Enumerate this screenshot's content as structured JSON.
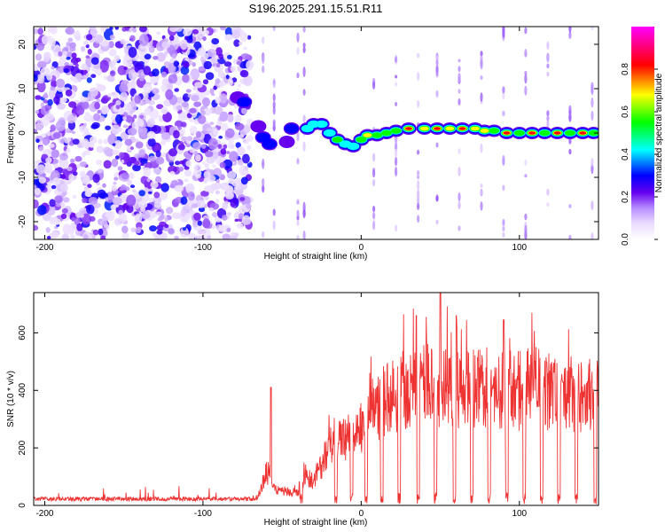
{
  "title": "S196.2025.291.15.51.R11",
  "colors": {
    "snr_line": "#ee3333",
    "frame": "#000000",
    "bg": "#ffffff",
    "colorbar_stops": [
      "#f0e6ff",
      "#cc99ff",
      "#8822ee",
      "#0000ff",
      "#00ffff",
      "#00ff00",
      "#ffff00",
      "#ff0000",
      "#ff00ff"
    ]
  },
  "chart_data": [
    {
      "type": "heatmap",
      "title": "S196.2025.291.15.51.R11",
      "xlabel": "Height of straight line (km)",
      "ylabel": "Frequency (Hz)",
      "xlim": [
        -207,
        150
      ],
      "ylim": [
        -24,
        24
      ],
      "xticks": [
        -200,
        -100,
        0,
        100
      ],
      "xtick_labels": [
        "-200",
        "-100",
        "0",
        "100"
      ],
      "yticks": [
        -20,
        -10,
        0,
        10,
        20
      ],
      "ytick_labels": [
        "-20",
        "-10",
        "0",
        "10",
        "20"
      ],
      "colorbar": {
        "label": "Normalized spectral amplitude",
        "range": [
          0,
          1
        ],
        "ticks": [
          0.0,
          0.2,
          0.4,
          0.6,
          0.8
        ],
        "tick_labels": [
          "0.0",
          "0.2",
          "0.4",
          "0.6",
          "0.8"
        ]
      },
      "noise_region": {
        "x_from": -207,
        "x_to": -70,
        "level": 0.15
      },
      "ridge_points": [
        {
          "x": -78,
          "f": 8,
          "amp": 0.25
        },
        {
          "x": -74,
          "f": 7,
          "amp": 0.3
        },
        {
          "x": -65,
          "f": 1.5,
          "amp": 0.25
        },
        {
          "x": -62,
          "f": -1,
          "amp": 0.35
        },
        {
          "x": -58,
          "f": -2.5,
          "amp": 0.3
        },
        {
          "x": -47,
          "f": -2,
          "amp": 0.25
        },
        {
          "x": -44,
          "f": 1,
          "amp": 0.3
        },
        {
          "x": -34,
          "f": 1,
          "amp": 0.45
        },
        {
          "x": -30,
          "f": 2,
          "amp": 0.5
        },
        {
          "x": -25,
          "f": 2,
          "amp": 0.45
        },
        {
          "x": -20,
          "f": 0,
          "amp": 0.45
        },
        {
          "x": -15,
          "f": -1.5,
          "amp": 0.55
        },
        {
          "x": -10,
          "f": -2.5,
          "amp": 0.5
        },
        {
          "x": -5,
          "f": -3,
          "amp": 0.45
        },
        {
          "x": 0,
          "f": -1.5,
          "amp": 0.55
        },
        {
          "x": 4,
          "f": -0.5,
          "amp": 0.75
        },
        {
          "x": 10,
          "f": -0.5,
          "amp": 0.6
        },
        {
          "x": 16,
          "f": 0,
          "amp": 0.55
        },
        {
          "x": 22,
          "f": 0.5,
          "amp": 0.65
        },
        {
          "x": 30,
          "f": 1,
          "amp": 0.8
        },
        {
          "x": 40,
          "f": 1,
          "amp": 0.7
        },
        {
          "x": 48,
          "f": 1,
          "amp": 0.85
        },
        {
          "x": 56,
          "f": 1,
          "amp": 0.75
        },
        {
          "x": 64,
          "f": 1,
          "amp": 0.85
        },
        {
          "x": 72,
          "f": 1,
          "amp": 0.7
        },
        {
          "x": 78,
          "f": 0.5,
          "amp": 0.75
        },
        {
          "x": 84,
          "f": 0.5,
          "amp": 0.6
        },
        {
          "x": 92,
          "f": 0,
          "amp": 0.8
        },
        {
          "x": 100,
          "f": 0,
          "amp": 0.65
        },
        {
          "x": 108,
          "f": 0,
          "amp": 0.8
        },
        {
          "x": 116,
          "f": 0,
          "amp": 0.65
        },
        {
          "x": 124,
          "f": 0,
          "amp": 0.8
        },
        {
          "x": 132,
          "f": 0,
          "amp": 0.65
        },
        {
          "x": 140,
          "f": 0,
          "amp": 0.8
        },
        {
          "x": 147,
          "f": 0,
          "amp": 0.65
        }
      ]
    },
    {
      "type": "line",
      "xlabel": "Height of straight line (km)",
      "ylabel": "SNR (10 * v/v)",
      "xlim": [
        -207,
        150
      ],
      "ylim": [
        0,
        740
      ],
      "xticks": [
        -200,
        -100,
        0,
        100
      ],
      "xtick_labels": [
        "-200",
        "-100",
        "0",
        "100"
      ],
      "yticks": [
        0,
        200,
        400,
        600
      ],
      "ytick_labels": [
        "0",
        "200",
        "400",
        "600"
      ],
      "envelope": {
        "x": [
          -207,
          -70,
          -65,
          -60,
          -55,
          -50,
          -45,
          -40,
          -35,
          -30,
          -25,
          -20,
          -15,
          -10,
          -5,
          0,
          5,
          10,
          15,
          20,
          25,
          30,
          35,
          40,
          50,
          60,
          70,
          80,
          90,
          100,
          110,
          120,
          130,
          140,
          150
        ],
        "y": [
          20,
          20,
          35,
          140,
          70,
          60,
          55,
          50,
          120,
          100,
          160,
          250,
          240,
          280,
          300,
          330,
          380,
          400,
          430,
          450,
          470,
          480,
          500,
          500,
          480,
          480,
          470,
          480,
          480,
          470,
          480,
          460,
          460,
          450,
          470
        ]
      },
      "peaks": [
        {
          "x": -57,
          "y": 410
        },
        {
          "x": 50,
          "y": 740
        },
        {
          "x": 35,
          "y": 660
        },
        {
          "x": 60,
          "y": 660
        },
        {
          "x": 90,
          "y": 645
        },
        {
          "x": 125,
          "y": 665
        }
      ],
      "dropouts_x": [
        -38,
        -16,
        -6,
        3,
        13,
        24,
        36,
        47,
        59,
        70,
        81,
        92,
        103,
        114,
        125,
        136,
        148
      ]
    }
  ]
}
